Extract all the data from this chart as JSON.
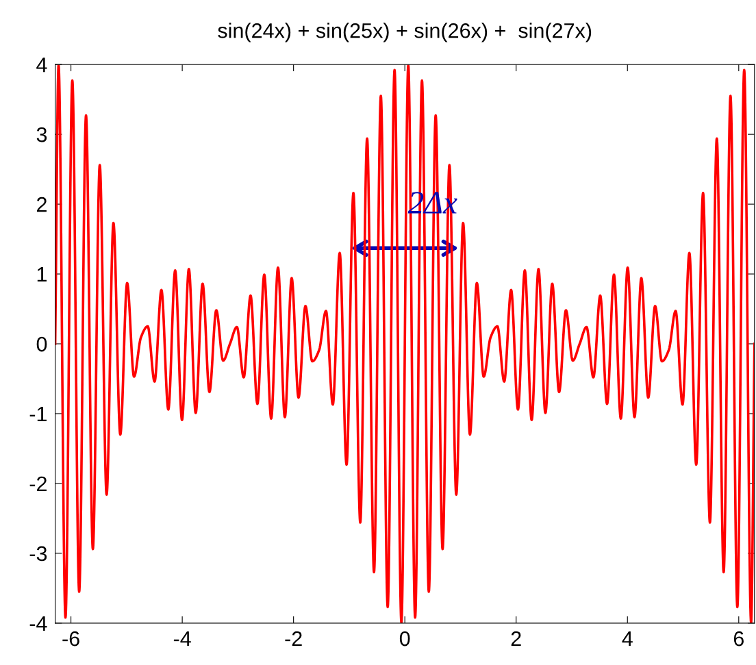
{
  "chart_data": {
    "type": "line",
    "title": "sin(24x) + sin(25x) + sin(26x) +  sin(27x)",
    "x": [
      -6.283,
      -6.222,
      -6.098,
      -5.975,
      -5.852,
      -5.729,
      -5.606,
      -5.482,
      -5.359,
      -5.236,
      -5.113,
      -4.99,
      -4.866,
      -4.743,
      -4.62,
      -4.497,
      -4.374,
      -4.25,
      -4.127,
      -4.004,
      -3.881,
      -3.758,
      -3.634,
      -3.511,
      -3.388,
      -3.265,
      -3.142,
      -3.018,
      -2.895,
      -2.772,
      -2.649,
      -2.526,
      -2.402,
      -2.279,
      -2.156,
      -2.033,
      -1.91,
      -1.786,
      -1.663,
      -1.54,
      -1.417,
      -1.294,
      -1.17,
      -1.047,
      -0.924,
      -0.801,
      -0.678,
      -0.554,
      -0.431,
      -0.308,
      -0.185,
      -0.062,
      0.062,
      0.185,
      0.308,
      0.431,
      0.554,
      0.678,
      0.801,
      0.924,
      1.047,
      1.17,
      1.294,
      1.417,
      1.54,
      1.663,
      1.786,
      1.91,
      2.033,
      2.156,
      2.279,
      2.402,
      2.526,
      2.649,
      2.772,
      2.895,
      3.018,
      3.142,
      3.265,
      3.388,
      3.511,
      3.634,
      3.758,
      3.881,
      4.004,
      4.127,
      4.25,
      4.374,
      4.497,
      4.62,
      4.743,
      4.866,
      4.99,
      5.113,
      5.236,
      5.359,
      5.482,
      5.606,
      5.729,
      5.852,
      5.975,
      6.098,
      6.222,
      6.283
    ],
    "series": [
      {
        "color": "#ff0000",
        "values": [
          0,
          3.99,
          -3.92,
          3.77,
          -3.55,
          3.27,
          -2.94,
          2.56,
          -2.16,
          1.73,
          -1.3,
          0.87,
          -0.47,
          0.09,
          0.25,
          -0.54,
          0.77,
          -0.94,
          1.05,
          -1.09,
          1.07,
          -0.99,
          0.86,
          -0.69,
          0.48,
          -0.24,
          0,
          0.24,
          -0.48,
          0.69,
          -0.86,
          0.99,
          -1.07,
          1.09,
          -1.05,
          0.94,
          -0.77,
          0.54,
          -0.25,
          -0.09,
          0.47,
          -0.87,
          1.3,
          -1.73,
          2.16,
          -2.56,
          2.94,
          -3.27,
          3.55,
          -3.77,
          3.92,
          -3.99,
          3.99,
          -3.92,
          3.77,
          -3.55,
          3.27,
          -2.94,
          2.56,
          -2.16,
          1.73,
          -1.3,
          0.87,
          -0.47,
          0.09,
          0.25,
          -0.54,
          0.77,
          -0.94,
          1.05,
          -1.09,
          1.07,
          -0.99,
          0.86,
          -0.69,
          0.48,
          -0.24,
          0,
          0.24,
          -0.48,
          0.69,
          -0.86,
          0.99,
          -1.07,
          1.09,
          -1.05,
          0.94,
          -0.77,
          0.54,
          -0.25,
          -0.09,
          0.47,
          -0.87,
          1.3,
          -1.73,
          2.16,
          -2.56,
          2.94,
          -3.27,
          3.55,
          -3.77,
          3.92,
          -3.99,
          0
        ]
      }
    ],
    "annotations": [
      {
        "text": "2Δx",
        "x": 1.0,
        "y": 1.37
      }
    ],
    "xlim": [
      -6.283,
      6.283
    ],
    "xticks": [
      -6,
      -4,
      -2,
      0,
      2,
      4,
      6
    ],
    "ylim": [
      -4,
      4
    ],
    "yticks": [
      -4,
      -3,
      -2,
      -1,
      0,
      1,
      2,
      3,
      4
    ],
    "grid": false,
    "legend": false,
    "marker": "none",
    "line_style": "solid"
  }
}
